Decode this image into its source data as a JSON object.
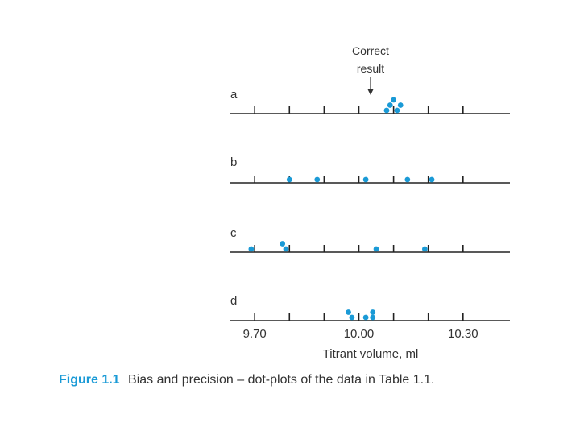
{
  "chart_data": {
    "type": "scatter",
    "subtype": "dot-plot",
    "xlabel": "Titrant volume, ml",
    "xlim": [
      9.63,
      10.435
    ],
    "x_ticks": [
      9.7,
      9.8,
      9.9,
      10.0,
      10.1,
      10.2,
      10.3
    ],
    "x_tick_labels": [
      "9.70",
      "10.00",
      "10.30"
    ],
    "x_labeled_ticks": [
      9.7,
      10.0,
      10.3
    ],
    "annotation": {
      "text_line1": "Correct",
      "text_line2": "result",
      "x": 10.0
    },
    "point_color": "#1a9ad6",
    "rows": [
      {
        "label": "a",
        "values": [
          10.08,
          10.11,
          10.09,
          10.1,
          10.12
        ]
      },
      {
        "label": "b",
        "values": [
          9.88,
          10.14,
          10.02,
          9.8,
          10.21
        ]
      },
      {
        "label": "c",
        "values": [
          10.19,
          9.79,
          9.69,
          10.05,
          9.78
        ]
      },
      {
        "label": "d",
        "values": [
          10.04,
          9.98,
          10.02,
          9.97,
          10.04
        ]
      }
    ],
    "grid": false,
    "legend": "none"
  },
  "caption": {
    "label": "Figure 1.1",
    "text": "Bias and precision – dot-plots of the data in Table 1.1."
  }
}
